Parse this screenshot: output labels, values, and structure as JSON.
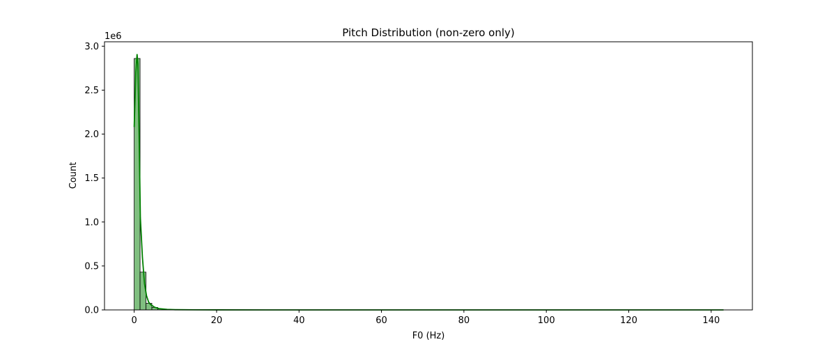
{
  "chart_data": {
    "type": "bar",
    "title": "Pitch Distribution (non-zero only)",
    "xlabel": "F0 (Hz)",
    "ylabel": "Count",
    "y_multiplier_label": "1e6",
    "xlim": [
      -7.2,
      150.0
    ],
    "ylim": [
      0,
      3050000
    ],
    "x_ticks": [
      0,
      20,
      40,
      60,
      80,
      100,
      120,
      140
    ],
    "y_ticks": [
      0.0,
      0.5,
      1.0,
      1.5,
      2.0,
      2.5,
      3.0
    ],
    "x_tick_labels": [
      "0",
      "20",
      "40",
      "60",
      "80",
      "100",
      "120",
      "140"
    ],
    "y_tick_labels": [
      "0.0",
      "0.5",
      "1.0",
      "1.5",
      "2.0",
      "2.5",
      "3.0"
    ],
    "grid": false,
    "bin_edges": [
      0.0,
      1.43,
      2.86,
      4.29,
      5.72,
      7.15,
      8.58,
      10.01,
      11.44
    ],
    "values": [
      2860000,
      430000,
      75000,
      28000,
      12000,
      6000,
      3000,
      1500
    ],
    "kde_x": [
      0.0,
      0.4,
      0.7,
      0.9,
      1.2,
      1.5,
      2.0,
      2.5,
      3.0,
      3.5,
      4.0,
      5.0,
      6.0,
      8.0,
      10.0,
      15.0,
      20.0,
      40.0,
      60.0,
      80.0,
      100.0,
      120.0,
      143.0
    ],
    "kde_y": [
      2080000,
      2700000,
      2910000,
      2800000,
      2000000,
      1050000,
      600000,
      300000,
      160000,
      90000,
      60000,
      30000,
      15000,
      6000,
      2500,
      800,
      300,
      100,
      60,
      40,
      30,
      20,
      10
    ],
    "colors": {
      "bar_fill": "#80bf80",
      "bar_edge": "#000000",
      "kde_line": "#008000"
    }
  }
}
